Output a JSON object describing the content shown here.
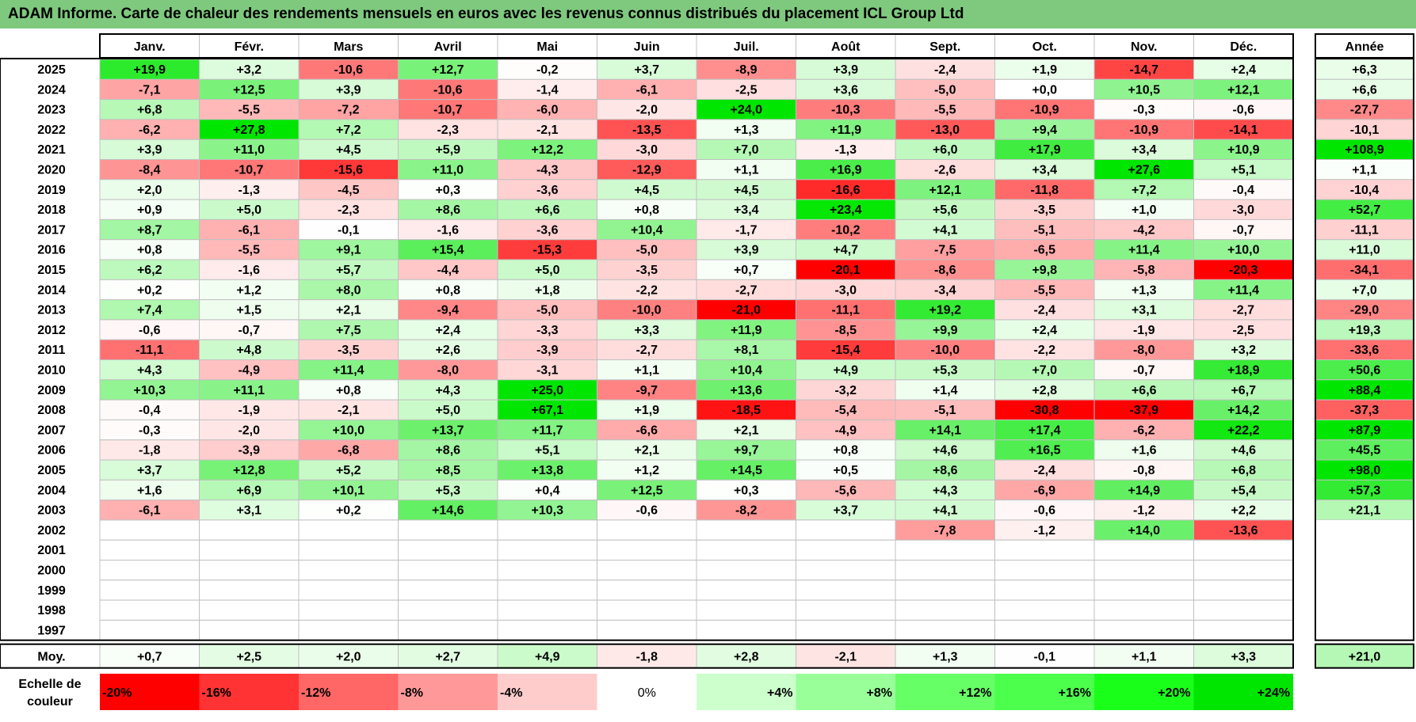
{
  "title": "ADAM Informe. Carte de chaleur des rendements mensuels en euros avec les revenus connus distribués du placement ICL Group Ltd",
  "chart_data": {
    "type": "heatmap",
    "months": [
      "Janv.",
      "Févr.",
      "Mars",
      "Avril",
      "Mai",
      "Juin",
      "Juil.",
      "Août",
      "Sept.",
      "Oct.",
      "Nov.",
      "Déc."
    ],
    "year_column_label": "Année",
    "average_row_label": "Moy.",
    "scale_label": "Echelle de couleur",
    "rows": [
      {
        "year": "2025",
        "values": [
          "+19,9",
          "+3,2",
          "-10,6",
          "+12,7",
          "-0,2",
          "+3,7",
          "-8,9",
          "+3,9",
          "-2,4",
          "+1,9",
          "-14,7",
          "+2,4"
        ],
        "annual": "+6,3"
      },
      {
        "year": "2024",
        "values": [
          "-7,1",
          "+12,5",
          "+3,9",
          "-10,6",
          "-1,4",
          "-6,1",
          "-2,5",
          "+3,6",
          "-5,0",
          "+0,0",
          "+10,5",
          "+12,1"
        ],
        "annual": "+6,6"
      },
      {
        "year": "2023",
        "values": [
          "+6,8",
          "-5,5",
          "-7,2",
          "-10,7",
          "-6,0",
          "-2,0",
          "+24,0",
          "-10,3",
          "-5,5",
          "-10,9",
          "-0,3",
          "-0,6"
        ],
        "annual": "-27,7"
      },
      {
        "year": "2022",
        "values": [
          "-6,2",
          "+27,8",
          "+7,2",
          "-2,3",
          "-2,1",
          "-13,5",
          "+1,3",
          "+11,9",
          "-13,0",
          "+9,4",
          "-10,9",
          "-14,1"
        ],
        "annual": "-10,1"
      },
      {
        "year": "2021",
        "values": [
          "+3,9",
          "+11,0",
          "+4,5",
          "+5,9",
          "+12,2",
          "-3,0",
          "+7,0",
          "-1,3",
          "+6,0",
          "+17,9",
          "+3,4",
          "+10,9"
        ],
        "annual": "+108,9"
      },
      {
        "year": "2020",
        "values": [
          "-8,4",
          "-10,7",
          "-15,6",
          "+11,0",
          "-4,3",
          "-12,9",
          "+1,1",
          "+16,9",
          "-2,6",
          "+3,4",
          "+27,6",
          "+5,1"
        ],
        "annual": "+1,1"
      },
      {
        "year": "2019",
        "values": [
          "+2,0",
          "-1,3",
          "-4,5",
          "+0,3",
          "-3,6",
          "+4,5",
          "+4,5",
          "-16,6",
          "+12,1",
          "-11,8",
          "+7,2",
          "-0,4"
        ],
        "annual": "-10,4"
      },
      {
        "year": "2018",
        "values": [
          "+0,9",
          "+5,0",
          "-2,3",
          "+8,6",
          "+6,6",
          "+0,8",
          "+3,4",
          "+23,4",
          "+5,6",
          "-3,5",
          "+1,0",
          "-3,0"
        ],
        "annual": "+52,7"
      },
      {
        "year": "2017",
        "values": [
          "+8,7",
          "-6,1",
          "-0,1",
          "-1,6",
          "-3,6",
          "+10,4",
          "-1,7",
          "-10,2",
          "+4,1",
          "-5,1",
          "-4,2",
          "-0,7"
        ],
        "annual": "-11,1"
      },
      {
        "year": "2016",
        "values": [
          "+0,8",
          "-5,5",
          "+9,1",
          "+15,4",
          "-15,3",
          "-5,0",
          "+3,9",
          "+4,7",
          "-7,5",
          "-6,5",
          "+11,4",
          "+10,0"
        ],
        "annual": "+11,0"
      },
      {
        "year": "2015",
        "values": [
          "+6,2",
          "-1,6",
          "+5,7",
          "-4,4",
          "+5,0",
          "-3,5",
          "+0,7",
          "-20,1",
          "-8,6",
          "+9,8",
          "-5,8",
          "-20,3"
        ],
        "annual": "-34,1"
      },
      {
        "year": "2014",
        "values": [
          "+0,2",
          "+1,2",
          "+8,0",
          "+0,8",
          "+1,8",
          "-2,2",
          "-2,7",
          "-3,0",
          "-3,4",
          "-5,5",
          "+1,3",
          "+11,4"
        ],
        "annual": "+7,0"
      },
      {
        "year": "2013",
        "values": [
          "+7,4",
          "+1,5",
          "+2,1",
          "-9,4",
          "-5,0",
          "-10,0",
          "-21,0",
          "-11,1",
          "+19,2",
          "-2,4",
          "+3,1",
          "-2,7"
        ],
        "annual": "-29,0"
      },
      {
        "year": "2012",
        "values": [
          "-0,6",
          "-0,7",
          "+7,5",
          "+2,4",
          "-3,3",
          "+3,3",
          "+11,9",
          "-8,5",
          "+9,9",
          "+2,4",
          "-1,9",
          "-2,5"
        ],
        "annual": "+19,3"
      },
      {
        "year": "2011",
        "values": [
          "-11,1",
          "+4,8",
          "-3,5",
          "+2,6",
          "-3,9",
          "-2,7",
          "+8,1",
          "-15,4",
          "-10,0",
          "-2,2",
          "-8,0",
          "+3,2"
        ],
        "annual": "-33,6"
      },
      {
        "year": "2010",
        "values": [
          "+4,3",
          "-4,9",
          "+11,4",
          "-8,0",
          "-3,1",
          "+1,1",
          "+10,4",
          "+4,9",
          "+5,3",
          "+7,0",
          "-0,7",
          "+18,9"
        ],
        "annual": "+50,6"
      },
      {
        "year": "2009",
        "values": [
          "+10,3",
          "+11,1",
          "+0,8",
          "+4,3",
          "+25,0",
          "-9,7",
          "+13,6",
          "-3,2",
          "+1,4",
          "+2,8",
          "+6,6",
          "+6,7"
        ],
        "annual": "+88,4"
      },
      {
        "year": "2008",
        "values": [
          "-0,4",
          "-1,9",
          "-2,1",
          "+5,0",
          "+67,1",
          "+1,9",
          "-18,5",
          "-5,4",
          "-5,1",
          "-30,8",
          "-37,9",
          "+14,2"
        ],
        "annual": "-37,3"
      },
      {
        "year": "2007",
        "values": [
          "-0,3",
          "-2,0",
          "+10,0",
          "+13,7",
          "+11,7",
          "-6,6",
          "+2,1",
          "-4,9",
          "+14,1",
          "+17,4",
          "-6,2",
          "+22,2"
        ],
        "annual": "+87,9"
      },
      {
        "year": "2006",
        "values": [
          "-1,8",
          "-3,9",
          "-6,8",
          "+8,6",
          "+5,1",
          "+2,1",
          "+9,7",
          "+0,8",
          "+4,6",
          "+16,5",
          "+1,6",
          "+4,6"
        ],
        "annual": "+45,5"
      },
      {
        "year": "2005",
        "values": [
          "+3,7",
          "+12,8",
          "+5,2",
          "+8,5",
          "+13,8",
          "+1,2",
          "+14,5",
          "+0,5",
          "+8,6",
          "-2,4",
          "-0,8",
          "+6,8"
        ],
        "annual": "+98,0"
      },
      {
        "year": "2004",
        "values": [
          "+1,6",
          "+6,9",
          "+10,1",
          "+5,3",
          "+0,4",
          "+12,5",
          "+0,3",
          "-5,6",
          "+4,3",
          "-6,9",
          "+14,9",
          "+5,4"
        ],
        "annual": "+57,3"
      },
      {
        "year": "2003",
        "values": [
          "-6,1",
          "+3,1",
          "+0,2",
          "+14,6",
          "+10,3",
          "-0,6",
          "-8,2",
          "+3,7",
          "+4,1",
          "-0,6",
          "-1,2",
          "+2,2"
        ],
        "annual": "+21,1"
      },
      {
        "year": "2002",
        "values": [
          "",
          "",
          "",
          "",
          "",
          "",
          "",
          "",
          "-7,8",
          "-1,2",
          "+14,0",
          "-13,6"
        ],
        "annual": ""
      },
      {
        "year": "2001",
        "values": [
          "",
          "",
          "",
          "",
          "",
          "",
          "",
          "",
          "",
          "",
          "",
          ""
        ],
        "annual": ""
      },
      {
        "year": "2000",
        "values": [
          "",
          "",
          "",
          "",
          "",
          "",
          "",
          "",
          "",
          "",
          "",
          ""
        ],
        "annual": ""
      },
      {
        "year": "1999",
        "values": [
          "",
          "",
          "",
          "",
          "",
          "",
          "",
          "",
          "",
          "",
          "",
          ""
        ],
        "annual": ""
      },
      {
        "year": "1998",
        "values": [
          "",
          "",
          "",
          "",
          "",
          "",
          "",
          "",
          "",
          "",
          "",
          ""
        ],
        "annual": ""
      },
      {
        "year": "1997",
        "values": [
          "",
          "",
          "",
          "",
          "",
          "",
          "",
          "",
          "",
          "",
          "",
          ""
        ],
        "annual": ""
      }
    ],
    "average": {
      "values": [
        "+0,7",
        "+2,5",
        "+2,0",
        "+2,7",
        "+4,9",
        "-1,8",
        "+2,8",
        "-2,1",
        "+1,3",
        "-0,1",
        "+1,1",
        "+3,3"
      ],
      "annual": "+21,0"
    },
    "scale": [
      {
        "label": "-20%",
        "value": -20,
        "color": "#ff0000"
      },
      {
        "label": "-16%",
        "value": -16,
        "color": "#ff3333"
      },
      {
        "label": "-12%",
        "value": -12,
        "color": "#ff6666"
      },
      {
        "label": "-8%",
        "value": -8,
        "color": "#ff9999"
      },
      {
        "label": "-4%",
        "value": -4,
        "color": "#ffcccc"
      },
      {
        "label": "0%",
        "value": 0,
        "color": "#ffffff"
      },
      {
        "label": "+4%",
        "value": 4,
        "color": "#ccffcc"
      },
      {
        "label": "+8%",
        "value": 8,
        "color": "#99ff99"
      },
      {
        "label": "+12%",
        "value": 12,
        "color": "#66ff66"
      },
      {
        "label": "+16%",
        "value": 16,
        "color": "#4dff4d"
      },
      {
        "label": "+20%",
        "value": 20,
        "color": "#1aff1a"
      },
      {
        "label": "+24%",
        "value": 24,
        "color": "#00e600"
      }
    ]
  }
}
